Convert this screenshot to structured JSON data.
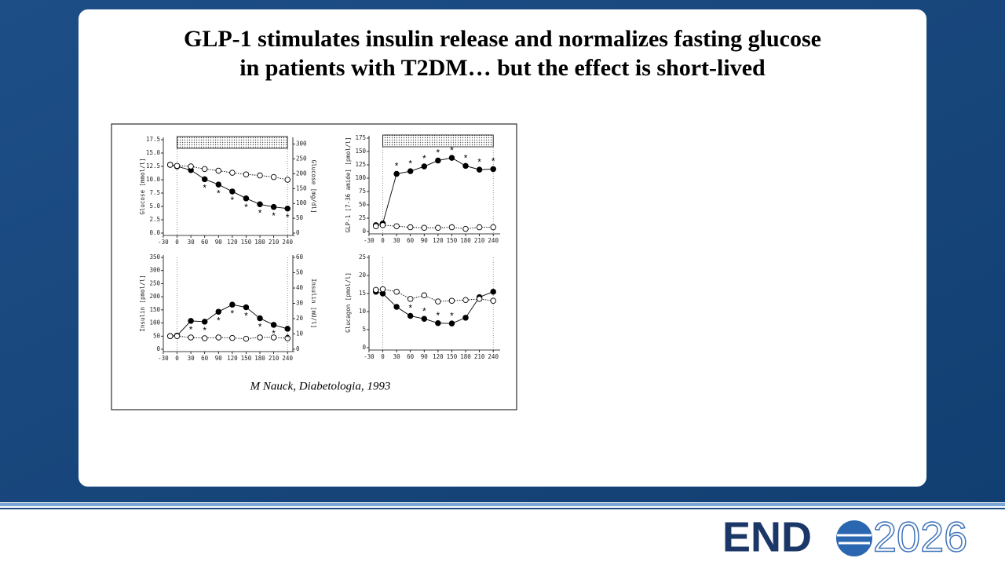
{
  "slide": {
    "title_lines": [
      "GLP-1 stimulates insulin release and normalizes fasting glucose",
      "in patients with T2DM… but the effect is short-lived"
    ],
    "citation": "M Nauck, Diabetologia, 1993",
    "logo": {
      "word": "END",
      "year": "2026"
    }
  },
  "chart_data": [
    {
      "type": "line",
      "ylabel": "Glucose [mmol/l]",
      "y2label": "Glucose [mg/dl]",
      "x": [
        -15,
        0,
        30,
        60,
        90,
        120,
        150,
        180,
        210,
        240
      ],
      "xlim": [
        -35,
        255
      ],
      "xticks": [
        -30,
        0,
        30,
        60,
        90,
        120,
        150,
        180,
        210,
        240
      ],
      "ylim": [
        0,
        17.5
      ],
      "yticks": [
        {
          "value": 0,
          "label": "0.0"
        },
        2.5,
        {
          "value": 5,
          "label": "5.0"
        },
        7.5,
        {
          "value": 10,
          "label": "10.0"
        },
        12.5,
        {
          "value": 15,
          "label": "15.0"
        },
        17.5
      ],
      "y2lim": [
        0,
        315
      ],
      "y2ticks": [
        0,
        50,
        100,
        150,
        200,
        250,
        300
      ],
      "period": [
        0,
        240
      ],
      "period_bar": true,
      "series": [
        {
          "color": "#000000",
          "style": "filled",
          "values": [
            12.8,
            12.5,
            11.8,
            10.1,
            9.1,
            7.8,
            6.5,
            5.4,
            4.9,
            4.6
          ]
        },
        {
          "color": "#000000",
          "style": "open",
          "values": [
            12.8,
            12.6,
            12.5,
            12,
            11.7,
            11.3,
            11,
            10.8,
            10.5,
            10
          ]
        }
      ],
      "significance": {
        "label": "*",
        "side": "below",
        "x": [
          60,
          90,
          120,
          150,
          180,
          210,
          240
        ]
      }
    },
    {
      "type": "line",
      "ylabel": "GLP-1 [7-36 amide] [pmol/l]",
      "x": [
        -15,
        0,
        30,
        60,
        90,
        120,
        150,
        180,
        210,
        240
      ],
      "xlim": [
        -35,
        255
      ],
      "xticks": [
        -30,
        0,
        30,
        60,
        90,
        120,
        150,
        180,
        210,
        240
      ],
      "ylim": [
        0,
        175
      ],
      "yticks": [
        0,
        25,
        50,
        75,
        100,
        125,
        150,
        175
      ],
      "period": [
        0,
        240
      ],
      "period_bar": true,
      "series": [
        {
          "color": "#000000",
          "style": "filled",
          "values": [
            12,
            15,
            108,
            113,
            122,
            133,
            138,
            123,
            116,
            117
          ]
        },
        {
          "color": "#000000",
          "style": "open",
          "values": [
            10,
            12,
            10,
            8,
            7,
            7,
            8,
            5,
            8,
            8
          ]
        }
      ],
      "significance": {
        "label": "*",
        "side": "above",
        "x": [
          30,
          60,
          90,
          120,
          150,
          180,
          210,
          240
        ]
      }
    },
    {
      "type": "line",
      "ylabel": "Insulin [pmol/l]",
      "y2label": "Insulin [mU/l]",
      "x": [
        -15,
        0,
        30,
        60,
        90,
        120,
        150,
        180,
        210,
        240
      ],
      "xlim": [
        -35,
        255
      ],
      "xticks": [
        -30,
        0,
        30,
        60,
        90,
        120,
        150,
        180,
        210,
        240
      ],
      "ylim": [
        0,
        350
      ],
      "yticks": [
        0,
        50,
        100,
        150,
        200,
        250,
        300,
        350
      ],
      "y2lim": [
        0,
        60
      ],
      "y2ticks": [
        0,
        10,
        20,
        30,
        40,
        50,
        60
      ],
      "period": [
        0,
        240
      ],
      "period_bar": false,
      "series": [
        {
          "color": "#000000",
          "style": "filled",
          "values": [
            50,
            52,
            108,
            105,
            143,
            170,
            160,
            118,
            93,
            78
          ]
        },
        {
          "color": "#000000",
          "style": "open",
          "values": [
            50,
            50,
            45,
            42,
            45,
            43,
            40,
            45,
            45,
            42
          ]
        }
      ],
      "significance": {
        "label": "*",
        "side": "below",
        "x": [
          30,
          60,
          90,
          120,
          150,
          180,
          210,
          240
        ]
      }
    },
    {
      "type": "line",
      "ylabel": "Glucagon [pmol/l]",
      "x": [
        -15,
        0,
        30,
        60,
        90,
        120,
        150,
        180,
        210,
        240
      ],
      "xlim": [
        -35,
        255
      ],
      "xticks": [
        -30,
        0,
        30,
        60,
        90,
        120,
        150,
        180,
        210,
        240
      ],
      "ylim": [
        0,
        25
      ],
      "yticks": [
        0,
        5,
        10,
        15,
        20,
        25
      ],
      "period": [
        0,
        240
      ],
      "period_bar": false,
      "series": [
        {
          "color": "#000000",
          "style": "filled",
          "values": [
            15.5,
            15,
            11.3,
            8.8,
            8,
            6.8,
            6.7,
            8.3,
            14,
            15.5
          ]
        },
        {
          "color": "#000000",
          "style": "open",
          "values": [
            16,
            16.2,
            15.5,
            13.5,
            14.5,
            12.8,
            13,
            13.2,
            13.5,
            13
          ]
        }
      ],
      "significance": {
        "label": "*",
        "side": "above",
        "x": [
          60,
          90,
          120,
          150
        ]
      }
    }
  ]
}
